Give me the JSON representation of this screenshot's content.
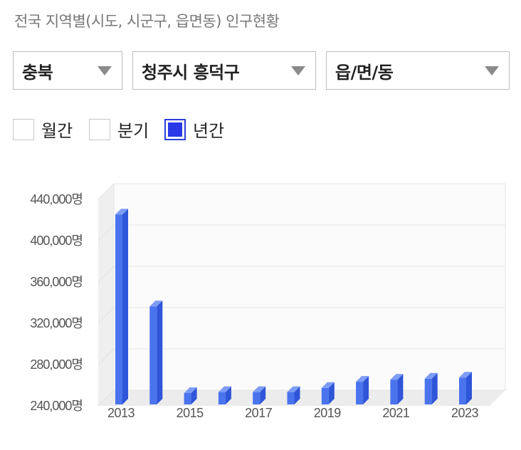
{
  "page": {
    "title": "전국 지역별(시도, 시군구, 읍면동) 인구현황"
  },
  "filters": {
    "province": "충북",
    "district": "청주시 흥덕구",
    "town": "읍/면/동"
  },
  "period_options": [
    {
      "label": "월간",
      "checked": false
    },
    {
      "label": "분기",
      "checked": false
    },
    {
      "label": "년간",
      "checked": true
    }
  ],
  "colors": {
    "bar_front": "#4a73ee",
    "bar_side": "#2f55d8",
    "bar_top": "#7d9cf5",
    "accent": "#2a39e8"
  },
  "chart_data": {
    "type": "bar",
    "title": "",
    "xlabel": "",
    "ylabel": "",
    "categories": [
      "2013",
      "2014",
      "2015",
      "2016",
      "2017",
      "2018",
      "2019",
      "2020",
      "2021",
      "2022",
      "2023"
    ],
    "x_tick_labels": [
      "2013",
      "2015",
      "2017",
      "2019",
      "2021",
      "2023"
    ],
    "values": [
      424000,
      335000,
      251000,
      252000,
      252000,
      252000,
      256000,
      262000,
      264000,
      265000,
      266000
    ],
    "ylim": [
      240000,
      440000
    ],
    "y_ticks": [
      240000,
      280000,
      320000,
      360000,
      400000,
      440000
    ],
    "y_tick_labels": [
      "240,000명",
      "280,000명",
      "320,000명",
      "360,000명",
      "400,000명",
      "440,000명"
    ],
    "grid": true,
    "legend": "none"
  }
}
